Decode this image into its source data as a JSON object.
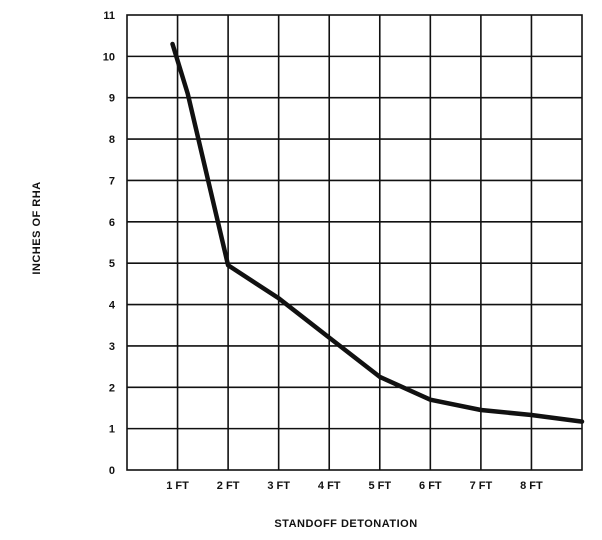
{
  "chart_data": {
    "type": "line",
    "title": "",
    "xlabel": "STANDOFF DETONATION",
    "ylabel": "INCHES OF RHA",
    "x_tick_labels": [
      "1 FT",
      "2 FT",
      "3 FT",
      "4 FT",
      "5 FT",
      "6 FT",
      "7 FT",
      "8 FT"
    ],
    "x_ticks": [
      1,
      2,
      3,
      4,
      5,
      6,
      7,
      8
    ],
    "y_tick_labels": [
      "0",
      "1",
      "2",
      "3",
      "4",
      "5",
      "6",
      "7",
      "8",
      "9",
      "10",
      "11"
    ],
    "y_ticks": [
      0,
      1,
      2,
      3,
      4,
      5,
      6,
      7,
      8,
      9,
      10,
      11
    ],
    "xlim": [
      0,
      9
    ],
    "ylim": [
      0,
      11
    ],
    "grid": true,
    "series": [
      {
        "x": [
          0.9,
          1.2,
          2.0,
          3.0,
          4.0,
          5.0,
          6.0,
          7.0,
          8.0,
          9.0
        ],
        "y": [
          10.3,
          9.1,
          4.95,
          4.15,
          3.2,
          2.25,
          1.7,
          1.45,
          1.33,
          1.17
        ]
      }
    ]
  }
}
